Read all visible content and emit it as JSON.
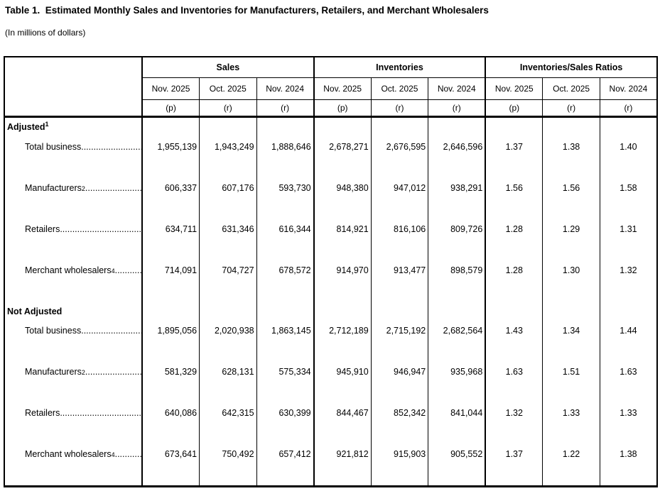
{
  "page": {
    "title": "Table 1.  Estimated Monthly Sales and Inventories for Manufacturers, Retailers, and Merchant Wholesalers",
    "subtitle": "(In millions of dollars)"
  },
  "table": {
    "groups": [
      {
        "label": "Sales"
      },
      {
        "label": "Inventories"
      },
      {
        "label": "Inventories/Sales Ratios"
      }
    ],
    "months": [
      "Nov. 2025",
      "Oct. 2025",
      "Nov. 2024",
      "Nov. 2025",
      "Oct. 2025",
      "Nov. 2024",
      "Nov. 2025",
      "Oct. 2025",
      "Nov. 2024"
    ],
    "status": [
      "(p)",
      "(r)",
      "(r)",
      "(p)",
      "(r)",
      "(r)",
      "(p)",
      "(r)",
      "(r)"
    ],
    "leader": "................................................................................",
    "rows": [
      {
        "type": "section",
        "label": "Adjusted",
        "sup": "1"
      },
      {
        "type": "data",
        "label": "Total business",
        "sup": "",
        "values": [
          "1,955,139",
          "1,943,249",
          "1,888,646",
          "2,678,271",
          "2,676,595",
          "2,646,596",
          "1.37",
          "1.38",
          "1.40"
        ]
      },
      {
        "type": "data",
        "label": "Manufacturers",
        "sup": "2",
        "values": [
          "606,337",
          "607,176",
          "593,730",
          "948,380",
          "947,012",
          "938,291",
          "1.56",
          "1.56",
          "1.58"
        ]
      },
      {
        "type": "data",
        "label": "Retailers",
        "sup": "",
        "values": [
          "634,711",
          "631,346",
          "616,344",
          "814,921",
          "816,106",
          "809,726",
          "1.28",
          "1.29",
          "1.31"
        ]
      },
      {
        "type": "data",
        "label": "Merchant wholesalers",
        "sup": "4",
        "values": [
          "714,091",
          "704,727",
          "678,572",
          "914,970",
          "913,477",
          "898,579",
          "1.28",
          "1.30",
          "1.32"
        ]
      },
      {
        "type": "section",
        "label": "Not Adjusted",
        "sup": ""
      },
      {
        "type": "data",
        "label": "Total business",
        "sup": "",
        "values": [
          "1,895,056",
          "2,020,938",
          "1,863,145",
          "2,712,189",
          "2,715,192",
          "2,682,564",
          "1.43",
          "1.34",
          "1.44"
        ]
      },
      {
        "type": "data",
        "label": "Manufacturers",
        "sup": "2",
        "values": [
          "581,329",
          "628,131",
          "575,334",
          "945,910",
          "946,947",
          "935,968",
          "1.63",
          "1.51",
          "1.63"
        ]
      },
      {
        "type": "data",
        "label": "Retailers",
        "sup": "",
        "values": [
          "640,086",
          "642,315",
          "630,399",
          "844,467",
          "852,342",
          "841,044",
          "1.32",
          "1.33",
          "1.33"
        ]
      },
      {
        "type": "data",
        "label": "Merchant wholesalers",
        "sup": "4",
        "values": [
          "673,641",
          "750,492",
          "657,412",
          "921,812",
          "915,903",
          "905,552",
          "1.37",
          "1.22",
          "1.38"
        ]
      }
    ]
  }
}
